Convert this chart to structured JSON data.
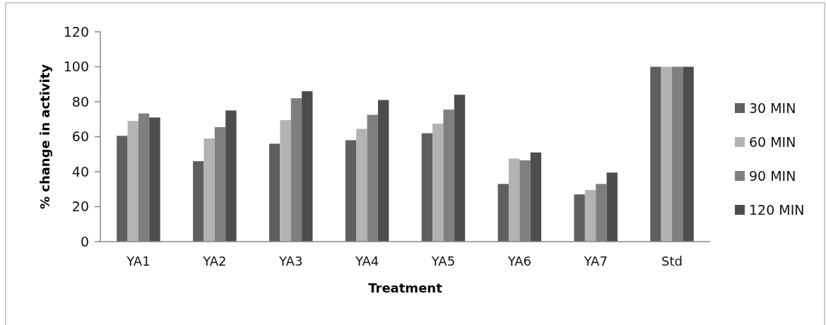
{
  "chart_data": {
    "type": "bar",
    "xlabel": "Treatment",
    "ylabel": "% change in activity",
    "categories": [
      "YA1",
      "YA2",
      "YA3",
      "YA4",
      "YA5",
      "YA6",
      "YA7",
      "Std"
    ],
    "series": [
      {
        "name": "30 MIN",
        "color": "#5f5f5f",
        "values": [
          60.5,
          46,
          56,
          58,
          62,
          33,
          27,
          100
        ]
      },
      {
        "name": "60 MIN",
        "color": "#b3b3b3",
        "values": [
          69,
          59,
          69.5,
          64.5,
          67.5,
          47.5,
          29.5,
          100
        ]
      },
      {
        "name": "90 MIN",
        "color": "#7f7f7f",
        "values": [
          73.3,
          65.5,
          82,
          72.5,
          75.5,
          46.5,
          33,
          100
        ]
      },
      {
        "name": "120 MIN",
        "color": "#4d4d4d",
        "values": [
          71,
          75,
          86,
          81,
          84,
          51,
          39.5,
          100
        ]
      }
    ],
    "ylim": [
      0,
      120
    ],
    "yticks": [
      0,
      20,
      40,
      60,
      80,
      100,
      120
    ],
    "grid": false,
    "legend": "right"
  }
}
